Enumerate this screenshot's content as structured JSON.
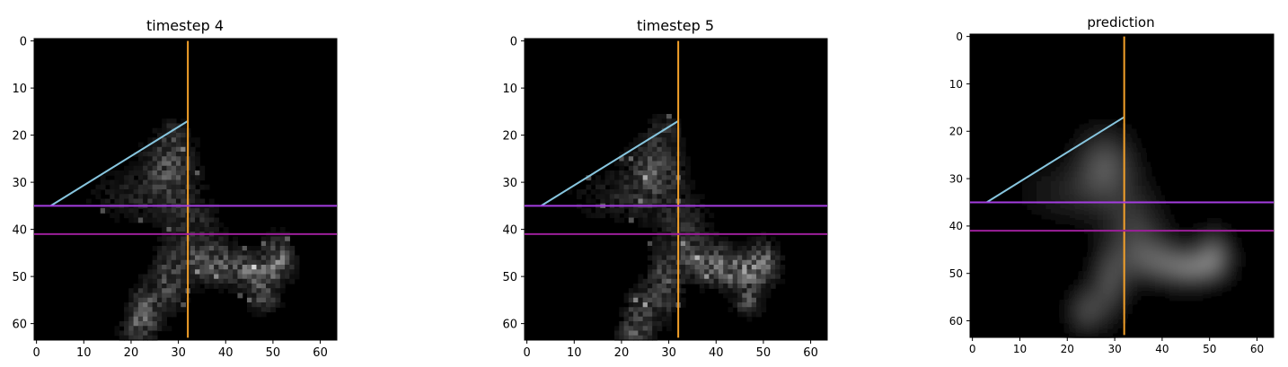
{
  "chart_data": [
    {
      "type": "heatmap",
      "title": "timestep 4",
      "image_size": [
        64,
        64
      ],
      "colormap": "gray",
      "xlim": [
        -0.5,
        63.5
      ],
      "ylim": [
        63.5,
        -0.5
      ],
      "xticks": [
        0,
        10,
        20,
        30,
        40,
        50,
        60
      ],
      "yticks": [
        0,
        10,
        20,
        30,
        40,
        50,
        60
      ],
      "blur": false,
      "blobs": [
        {
          "x": 28,
          "y": 27,
          "rx": 5,
          "ry": 6,
          "v": 0.3
        },
        {
          "x": 22,
          "y": 33,
          "rx": 10,
          "ry": 5,
          "v": 0.13
        },
        {
          "x": 33,
          "y": 40,
          "rx": 5,
          "ry": 6,
          "v": 0.18
        },
        {
          "x": 37,
          "y": 47,
          "rx": 6,
          "ry": 4,
          "v": 0.32
        },
        {
          "x": 46,
          "y": 49,
          "rx": 5,
          "ry": 3,
          "v": 0.4
        },
        {
          "x": 51,
          "y": 46,
          "rx": 3,
          "ry": 4,
          "v": 0.38
        },
        {
          "x": 48,
          "y": 54,
          "rx": 3,
          "ry": 3,
          "v": 0.3
        },
        {
          "x": 28,
          "y": 51,
          "rx": 3,
          "ry": 6,
          "v": 0.28
        },
        {
          "x": 23,
          "y": 57,
          "rx": 3,
          "ry": 5,
          "v": 0.32
        },
        {
          "x": 21,
          "y": 61,
          "rx": 3,
          "ry": 3,
          "v": 0.22
        },
        {
          "x": 29,
          "y": 20,
          "rx": 3,
          "ry": 3,
          "v": 0.15
        }
      ],
      "lines": [
        {
          "name": "diagonal",
          "color": "#87c6df",
          "x": [
            3,
            32
          ],
          "y": [
            35,
            17
          ]
        },
        {
          "name": "vertical",
          "color": "#f4a12a",
          "x": [
            32,
            32
          ],
          "y": [
            0,
            63
          ]
        },
        {
          "name": "horizontal-upper",
          "color": "#a43de0",
          "x": [
            -0.5,
            63.5
          ],
          "y": [
            35,
            35
          ]
        },
        {
          "name": "horizontal-lower",
          "color": "#9c1f9a",
          "x": [
            -0.5,
            63.5
          ],
          "y": [
            41,
            41
          ]
        }
      ]
    },
    {
      "type": "heatmap",
      "title": "timestep 5",
      "image_size": [
        64,
        64
      ],
      "colormap": "gray",
      "xlim": [
        -0.5,
        63.5
      ],
      "ylim": [
        63.5,
        -0.5
      ],
      "xticks": [
        0,
        10,
        20,
        30,
        40,
        50,
        60
      ],
      "yticks": [
        0,
        10,
        20,
        30,
        40,
        50,
        60
      ],
      "blur": false,
      "blobs": [
        {
          "x": 27,
          "y": 27,
          "rx": 5,
          "ry": 6,
          "v": 0.3
        },
        {
          "x": 21,
          "y": 33,
          "rx": 10,
          "ry": 5,
          "v": 0.13
        },
        {
          "x": 33,
          "y": 40,
          "rx": 5,
          "ry": 6,
          "v": 0.18
        },
        {
          "x": 38,
          "y": 47,
          "rx": 6,
          "ry": 4,
          "v": 0.32
        },
        {
          "x": 45,
          "y": 49,
          "rx": 5,
          "ry": 3,
          "v": 0.4
        },
        {
          "x": 50,
          "y": 47,
          "rx": 3,
          "ry": 4,
          "v": 0.36
        },
        {
          "x": 47,
          "y": 55,
          "rx": 3,
          "ry": 3,
          "v": 0.28
        },
        {
          "x": 29,
          "y": 52,
          "rx": 3,
          "ry": 6,
          "v": 0.3
        },
        {
          "x": 24,
          "y": 58,
          "rx": 3,
          "ry": 5,
          "v": 0.3
        },
        {
          "x": 22,
          "y": 62,
          "rx": 3,
          "ry": 2,
          "v": 0.22
        },
        {
          "x": 29,
          "y": 19,
          "rx": 3,
          "ry": 3,
          "v": 0.15
        }
      ],
      "lines": [
        {
          "name": "diagonal",
          "color": "#87c6df",
          "x": [
            3,
            32
          ],
          "y": [
            35,
            17
          ]
        },
        {
          "name": "vertical",
          "color": "#f4a12a",
          "x": [
            32,
            32
          ],
          "y": [
            0,
            63
          ]
        },
        {
          "name": "horizontal-upper",
          "color": "#a43de0",
          "x": [
            -0.5,
            63.5
          ],
          "y": [
            35,
            35
          ]
        },
        {
          "name": "horizontal-lower",
          "color": "#9c1f9a",
          "x": [
            -0.5,
            63.5
          ],
          "y": [
            41,
            41
          ]
        }
      ]
    },
    {
      "type": "heatmap",
      "title": "prediction",
      "image_size": [
        64,
        64
      ],
      "colormap": "gray",
      "xlim": [
        -0.5,
        63.5
      ],
      "ylim": [
        63.5,
        -0.5
      ],
      "xticks": [
        0,
        10,
        20,
        30,
        40,
        50,
        60
      ],
      "yticks": [
        0,
        10,
        20,
        30,
        40,
        50,
        60
      ],
      "blur": true,
      "blobs": [
        {
          "x": 28,
          "y": 27,
          "rx": 6,
          "ry": 7,
          "v": 0.3
        },
        {
          "x": 22,
          "y": 33,
          "rx": 11,
          "ry": 6,
          "v": 0.13
        },
        {
          "x": 34,
          "y": 40,
          "rx": 6,
          "ry": 7,
          "v": 0.2
        },
        {
          "x": 38,
          "y": 47,
          "rx": 7,
          "ry": 5,
          "v": 0.3
        },
        {
          "x": 46,
          "y": 49,
          "rx": 6,
          "ry": 4,
          "v": 0.34
        },
        {
          "x": 51,
          "y": 46,
          "rx": 4,
          "ry": 5,
          "v": 0.32
        },
        {
          "x": 29,
          "y": 52,
          "rx": 4,
          "ry": 7,
          "v": 0.26
        },
        {
          "x": 24,
          "y": 58,
          "rx": 4,
          "ry": 5,
          "v": 0.24
        }
      ],
      "lines": [
        {
          "name": "diagonal",
          "color": "#87c6df",
          "x": [
            3,
            32
          ],
          "y": [
            35,
            17
          ]
        },
        {
          "name": "vertical",
          "color": "#f4a12a",
          "x": [
            32,
            32
          ],
          "y": [
            0,
            63
          ]
        },
        {
          "name": "horizontal-upper",
          "color": "#a43de0",
          "x": [
            -0.5,
            63.5
          ],
          "y": [
            35,
            35
          ]
        },
        {
          "name": "horizontal-lower",
          "color": "#9c1f9a",
          "x": [
            -0.5,
            63.5
          ],
          "y": [
            41,
            41
          ]
        }
      ]
    }
  ]
}
